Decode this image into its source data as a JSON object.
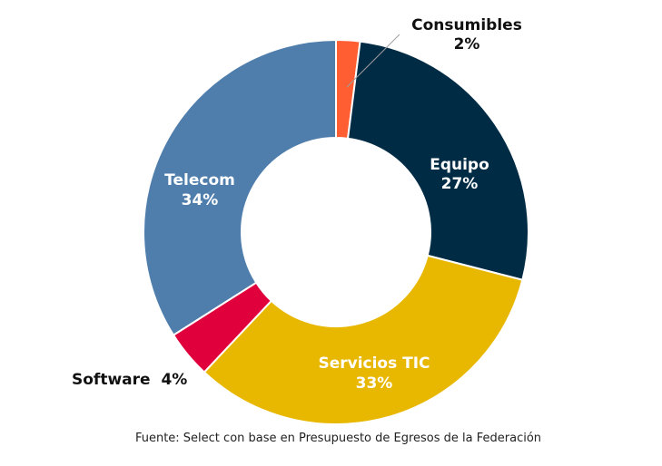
{
  "chart_data": {
    "type": "pie",
    "donut": true,
    "categories": [
      "Consumibles",
      "Equipo",
      "Servicios TIC",
      "Software",
      "Telecom"
    ],
    "values": [
      2,
      27,
      33,
      4,
      34
    ],
    "value_labels": [
      "2%",
      "27%",
      "33%",
      "4%",
      "34%"
    ],
    "colors": [
      "#FF5E33",
      "#002B45",
      "#E8B700",
      "#E0003C",
      "#4F7EAC"
    ],
    "legend": "none"
  },
  "labels": {
    "consumibles": {
      "name": "Consumibles",
      "value": "2%"
    },
    "equipo": {
      "name": "Equipo",
      "value": "27%"
    },
    "servicios": {
      "name": "Servicios TIC",
      "value": "33%"
    },
    "software": {
      "name": "Software",
      "value": "4%"
    },
    "telecom": {
      "name": "Telecom",
      "value": "34%"
    }
  },
  "source": "Fuente: Select con base en Presupuesto de Egresos de la Federación"
}
